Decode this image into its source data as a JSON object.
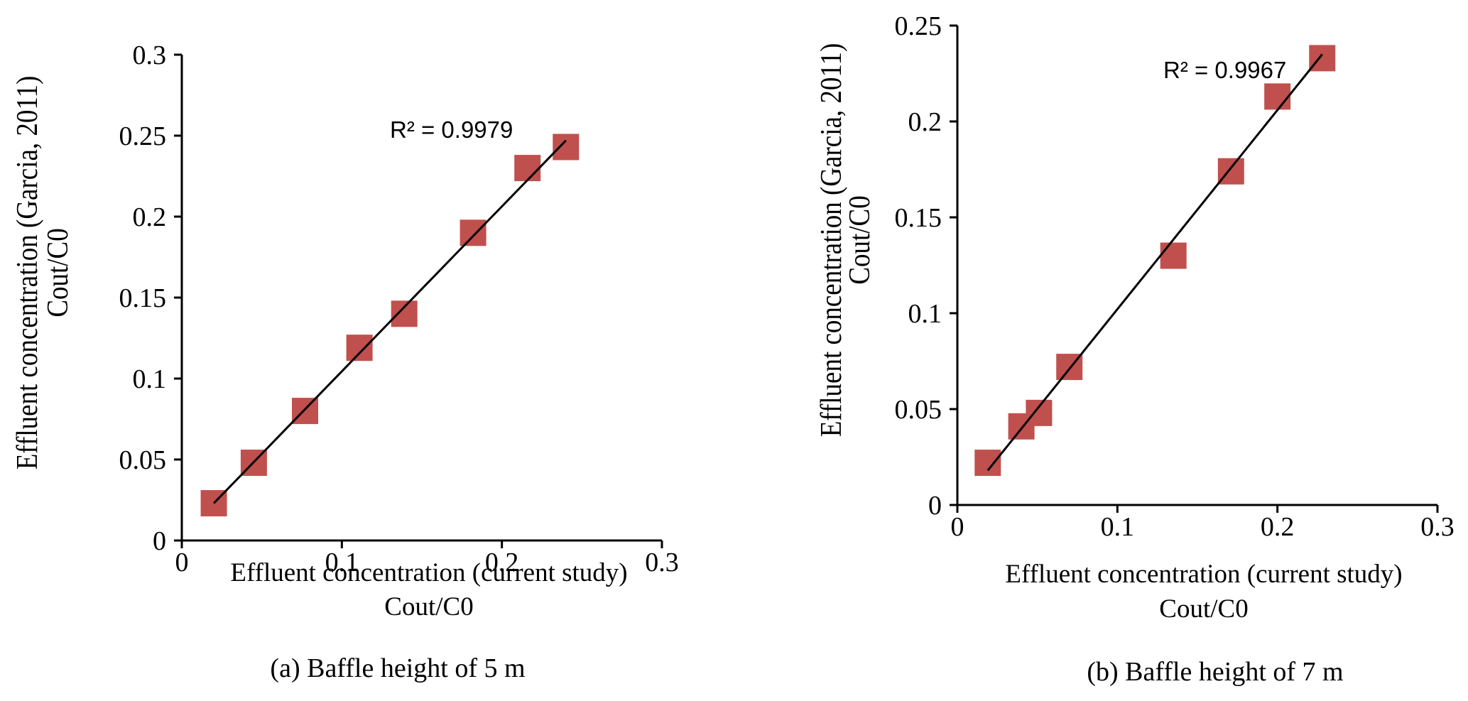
{
  "figure": {
    "panels": [
      {
        "caption": "(a) Baffle height of 5 m"
      },
      {
        "caption": "(b) Baffle height of 7 m"
      }
    ]
  },
  "chart_data": [
    {
      "type": "scatter",
      "title": "",
      "caption": "(a) Baffle height of 5 m",
      "xlabel": [
        "Effluent concentration (current study)",
        "Cout/C0"
      ],
      "ylabel": [
        "Effluent concentration (Garcia, 2011)",
        "Cout/C0"
      ],
      "xlim": [
        0,
        0.3
      ],
      "ylim": [
        0,
        0.3
      ],
      "xticks": [
        0,
        0.1,
        0.2,
        0.3
      ],
      "xtick_labels": [
        "0",
        "0.1",
        "0.2",
        "0.3"
      ],
      "yticks": [
        0,
        0.05,
        0.1,
        0.15,
        0.2,
        0.25,
        0.3
      ],
      "ytick_labels": [
        "0",
        "0.05",
        "0.1",
        "0.15",
        "0.2",
        "0.25",
        "0.3"
      ],
      "grid": false,
      "legend": "none",
      "marker": "square",
      "marker_color": "#C0504D",
      "series": [
        {
          "name": "data",
          "x": [
            0.02,
            0.045,
            0.077,
            0.111,
            0.139,
            0.182,
            0.216,
            0.24
          ],
          "y": [
            0.023,
            0.048,
            0.08,
            0.119,
            0.14,
            0.19,
            0.23,
            0.243
          ]
        }
      ],
      "trendline": {
        "type": "linear",
        "x": [
          0.02,
          0.24
        ],
        "y": [
          0.023,
          0.247
        ],
        "color": "#000000",
        "label": "R² = 0.9979"
      }
    },
    {
      "type": "scatter",
      "title": "",
      "caption": "(b) Baffle height of 7 m",
      "xlabel": [
        "Effluent concentration (current study)",
        "Cout/C0"
      ],
      "ylabel": [
        "Effluent concentration (Garcia, 2011)",
        "Cout/C0"
      ],
      "xlim": [
        0,
        0.3
      ],
      "ylim": [
        0,
        0.25
      ],
      "xticks": [
        0,
        0.1,
        0.2,
        0.3
      ],
      "xtick_labels": [
        "0",
        "0.1",
        "0.2",
        "0.3"
      ],
      "yticks": [
        0,
        0.05,
        0.1,
        0.15,
        0.2,
        0.25
      ],
      "ytick_labels": [
        "0",
        "0.05",
        "0.1",
        "0.15",
        "0.2",
        "0.25"
      ],
      "grid": false,
      "legend": "none",
      "marker": "square",
      "marker_color": "#C0504D",
      "series": [
        {
          "name": "data",
          "x": [
            0.019,
            0.04,
            0.051,
            0.07,
            0.135,
            0.171,
            0.2,
            0.228
          ],
          "y": [
            0.022,
            0.041,
            0.048,
            0.072,
            0.13,
            0.174,
            0.213,
            0.233
          ]
        }
      ],
      "trendline": {
        "type": "linear",
        "x": [
          0.019,
          0.228
        ],
        "y": [
          0.018,
          0.235
        ],
        "color": "#000000",
        "label": "R² = 0.9967"
      }
    }
  ]
}
